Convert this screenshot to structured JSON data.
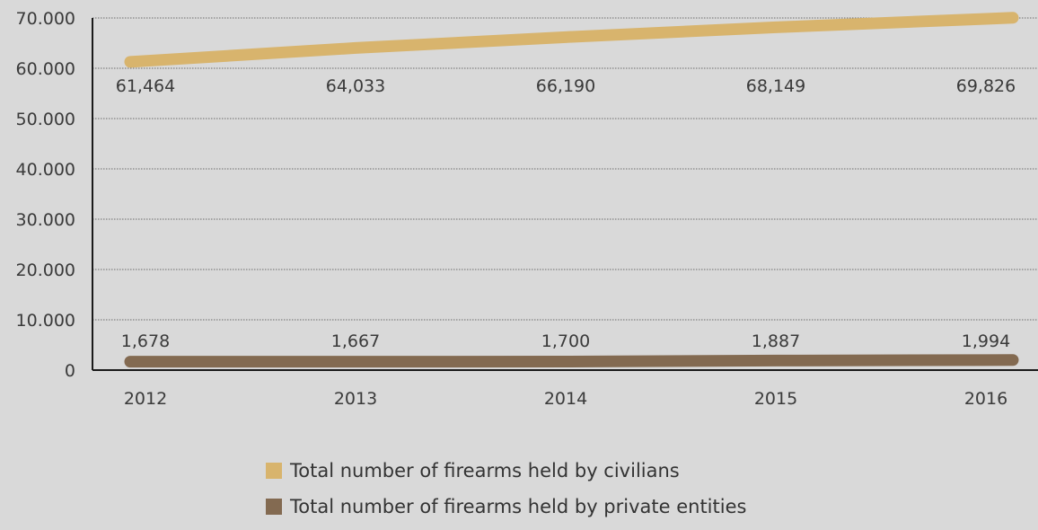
{
  "chart_data": {
    "type": "line",
    "title": "",
    "xlabel": "",
    "ylabel": "",
    "x": [
      "2012",
      "2013",
      "2014",
      "2015",
      "2016"
    ],
    "ylim": [
      0,
      70000
    ],
    "yticks": [
      0,
      10000,
      20000,
      30000,
      40000,
      50000,
      60000,
      70000
    ],
    "ytick_labels": [
      "0",
      "10.000",
      "20.000",
      "30.000",
      "40.000",
      "50.000",
      "60.000",
      "70.000"
    ],
    "grid": true,
    "legend_position": "bottom",
    "series": [
      {
        "name": "Total number of firearms held by civilians",
        "values": [
          61464,
          64033,
          66190,
          68149,
          69826
        ],
        "labels": [
          "61,464",
          "64,033",
          "66,190",
          "68,149",
          "69,826"
        ],
        "color": "#d8b46d"
      },
      {
        "name": "Total number of firearms held by private entities",
        "values": [
          1678,
          1667,
          1700,
          1887,
          1994
        ],
        "labels": [
          "1,678",
          "1,667",
          "1,700",
          "1,887",
          "1,994"
        ],
        "color": "#836a51"
      }
    ]
  }
}
